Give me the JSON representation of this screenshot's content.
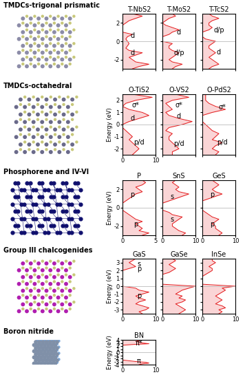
{
  "chart_data": [
    {
      "type": "area",
      "orientation": "horizontal",
      "group": "TMDCs-trigonal prismatic",
      "title": "T-NbS2",
      "color": "#e41a1c",
      "tick_labels": "y",
      "fermi_level": 0,
      "x": [
        -3,
        -2.75,
        -2.5,
        -2.25,
        -2,
        -1.75,
        -1.5,
        -1.25,
        -1,
        -0.75,
        -0.5,
        -0.25,
        0,
        0.25,
        0.5,
        0.75,
        1,
        1.25,
        1.5,
        1.75,
        2,
        2.25,
        2.5,
        2.75,
        3
      ],
      "values": [
        3,
        5,
        8,
        4,
        3,
        2,
        4,
        6,
        2,
        1,
        1.5,
        2,
        1.5,
        1,
        1.5,
        3,
        0,
        0,
        0,
        0,
        1,
        2,
        4,
        6,
        3
      ],
      "xlim": [
        0,
        10
      ],
      "xticks": [
        0,
        10
      ],
      "ylim": [
        -3,
        3
      ],
      "yticks": [
        -2,
        0,
        2
      ],
      "annotations": [
        {
          "text": "d",
          "x": 3,
          "y": 0.6
        },
        {
          "text": "d",
          "x": 3,
          "y": -1.3
        }
      ]
    },
    {
      "type": "area",
      "orientation": "horizontal",
      "group": "TMDCs-trigonal prismatic",
      "title": "T-MoS2",
      "color": "#e41a1c",
      "tick_labels": false,
      "fermi_level": 0,
      "x": [
        -3,
        -2.75,
        -2.5,
        -2.25,
        -2,
        -1.75,
        -1.5,
        -1.25,
        -1,
        -0.75,
        -0.5,
        -0.25,
        0,
        0.25,
        0.5,
        0.75,
        1,
        1.25,
        1.5,
        1.75,
        2,
        2.25,
        2.5,
        2.75,
        3
      ],
      "values": [
        3,
        4,
        6,
        3,
        2,
        3,
        4,
        5,
        3,
        2,
        2,
        3,
        0,
        0,
        0,
        2,
        3,
        5,
        3,
        1,
        0,
        1,
        2,
        4,
        3
      ],
      "xlim": [
        0,
        10
      ],
      "xticks": [
        0,
        10
      ],
      "ylim": [
        -3,
        3
      ],
      "yticks": [
        -2,
        0,
        2
      ],
      "annotations": [
        {
          "text": "d",
          "x": 5,
          "y": 1.0
        },
        {
          "text": "d/p",
          "x": 5,
          "y": -1.3
        }
      ]
    },
    {
      "type": "area",
      "orientation": "horizontal",
      "group": "TMDCs-trigonal prismatic",
      "title": "T-TcS2",
      "color": "#e41a1c",
      "tick_labels": false,
      "fermi_level": 0,
      "x": [
        -3,
        -2.75,
        -2.5,
        -2.25,
        -2,
        -1.75,
        -1.5,
        -1.25,
        -1,
        -0.75,
        -0.5,
        -0.25,
        0,
        0.25,
        0.5,
        0.75,
        1,
        1.25,
        1.5,
        1.75,
        2,
        2.25,
        2.5,
        2.75,
        3
      ],
      "values": [
        2,
        3,
        5,
        4,
        3,
        2,
        3,
        4,
        3,
        2,
        2,
        3,
        4,
        1,
        0,
        0,
        0,
        2,
        3,
        2,
        2,
        3,
        5,
        3,
        2
      ],
      "xlim": [
        0,
        10
      ],
      "xticks": [
        0,
        10
      ],
      "ylim": [
        -3,
        3
      ],
      "yticks": [
        -2,
        0,
        2
      ],
      "annotations": [
        {
          "text": "d/p",
          "x": 5,
          "y": 1.2
        },
        {
          "text": "d",
          "x": 5,
          "y": -1.2
        }
      ]
    },
    {
      "type": "area",
      "orientation": "horizontal",
      "group": "TMDCs-octahedral",
      "title": "O-TiS2",
      "ylabel": "Energy (eV)",
      "color": "#e41a1c",
      "fermi_level": 0,
      "x": [
        -2.5,
        -2.25,
        -2,
        -1.75,
        -1.5,
        -1.25,
        -1,
        -0.75,
        -0.5,
        -0.25,
        0,
        0.25,
        0.5,
        0.75,
        1,
        1.25,
        1.5,
        1.75,
        2,
        2.25,
        2.5
      ],
      "values": [
        3,
        4,
        5,
        4,
        3,
        2,
        3,
        2,
        1,
        0,
        0,
        2,
        5,
        8,
        6,
        2,
        0,
        1,
        4,
        9,
        3
      ],
      "xlim": [
        0,
        10
      ],
      "xticks": [
        0,
        10
      ],
      "ylim": [
        -2.5,
        2.5
      ],
      "yticks": [
        -2,
        -1,
        0,
        1,
        2
      ],
      "annotations": [
        {
          "text": "σ*",
          "x": 4,
          "y": 1.6
        },
        {
          "text": "d",
          "x": 3,
          "y": 0.5
        },
        {
          "text": "p/d",
          "x": 5,
          "y": -1.5
        }
      ]
    },
    {
      "type": "area",
      "orientation": "horizontal",
      "group": "TMDCs-octahedral",
      "title": "O-VS2",
      "color": "#e41a1c",
      "tick_labels": false,
      "fermi_level": 0,
      "x": [
        -2.5,
        -2.25,
        -2,
        -1.75,
        -1.5,
        -1.25,
        -1,
        -0.75,
        -0.5,
        -0.25,
        0,
        0.25,
        0.5,
        0.75,
        1,
        1.25,
        1.5,
        1.75,
        2,
        2.25,
        2.5
      ],
      "values": [
        3,
        3,
        5,
        4,
        3,
        2,
        2,
        3,
        1,
        2,
        6,
        9,
        5,
        2,
        1,
        3,
        2,
        1,
        3,
        8,
        4
      ],
      "xlim": [
        0,
        10
      ],
      "xticks": [
        0,
        10
      ],
      "ylim": [
        -2.5,
        2.5
      ],
      "yticks": [
        -2,
        -1,
        0,
        1,
        2
      ],
      "annotations": [
        {
          "text": "σ*",
          "x": 5,
          "y": 1.6
        },
        {
          "text": "d",
          "x": 5,
          "y": 0.7
        },
        {
          "text": "p/d",
          "x": 5,
          "y": -1.6
        }
      ]
    },
    {
      "type": "area",
      "orientation": "horizontal",
      "group": "TMDCs-octahedral",
      "title": "O-PdS2",
      "color": "#e41a1c",
      "tick_labels": false,
      "fermi_level": 0,
      "x": [
        -2.5,
        -2.25,
        -2,
        -1.75,
        -1.5,
        -1.25,
        -1,
        -0.75,
        -0.5,
        -0.25,
        0,
        0.25,
        0.5,
        0.75,
        1,
        1.25,
        1.5,
        1.75,
        2,
        2.25,
        2.5
      ],
      "values": [
        4,
        5,
        3,
        4,
        6,
        3,
        4,
        5,
        3,
        2,
        1,
        0,
        0,
        0,
        3,
        7,
        4,
        2,
        1,
        1,
        1
      ],
      "xlim": [
        0,
        10
      ],
      "xticks": [
        0,
        10
      ],
      "ylim": [
        -2.5,
        2.5
      ],
      "yticks": [
        -2,
        -1,
        0,
        1,
        2
      ],
      "annotations": [
        {
          "text": "σ*",
          "x": 6,
          "y": 1.4
        },
        {
          "text": "p/d",
          "x": 6,
          "y": -1.5
        }
      ]
    },
    {
      "type": "area",
      "orientation": "horizontal",
      "group": "Phosphorene and IV-VI",
      "title": "P",
      "ylabel": "Energy (eV)",
      "color": "#e41a1c",
      "fermi_level": 0,
      "x": [
        -3,
        -2.75,
        -2.5,
        -2.25,
        -2,
        -1.75,
        -1.5,
        -1.25,
        -1,
        -0.75,
        -0.5,
        -0.25,
        0,
        0.25,
        0.5,
        0.75,
        1,
        1.25,
        1.5,
        1.75,
        2,
        2.25,
        2.5,
        2.75,
        3
      ],
      "values": [
        3,
        4,
        2.5,
        3,
        2.5,
        2,
        3,
        2,
        1.5,
        1,
        0.5,
        0,
        0,
        0,
        0,
        0.5,
        1,
        1.5,
        2,
        3,
        2.5,
        2,
        3,
        3.5,
        3
      ],
      "xlim": [
        0,
        5
      ],
      "xticks": [
        0,
        5
      ],
      "ylim": [
        -3,
        3
      ],
      "yticks": [
        -2,
        0,
        2
      ],
      "annotations": [
        {
          "text": "p",
          "x": 1.5,
          "y": 1.4
        },
        {
          "text": "p",
          "x": 2.0,
          "y": -1.8
        }
      ]
    },
    {
      "type": "area",
      "orientation": "horizontal",
      "group": "Phosphorene and IV-VI",
      "title": "SnS",
      "color": "#e41a1c",
      "tick_labels": "x",
      "fermi_level": 0,
      "x": [
        -3,
        -2.75,
        -2.5,
        -2.25,
        -2,
        -1.75,
        -1.5,
        -1.25,
        -1,
        -0.75,
        -0.5,
        -0.25,
        0,
        0.25,
        0.5,
        0.75,
        1,
        1.25,
        1.5,
        1.75,
        2,
        2.25,
        2.5,
        2.75,
        3
      ],
      "values": [
        6,
        7,
        5,
        4,
        3,
        3,
        4,
        5,
        6,
        3,
        2,
        0,
        0,
        0,
        0,
        2,
        4,
        6,
        8,
        5,
        4,
        5,
        4,
        3,
        4
      ],
      "xlim": [
        0,
        10
      ],
      "xticks": [
        0,
        10
      ],
      "ylim": [
        -3,
        3
      ],
      "yticks": [
        -2,
        0,
        2
      ],
      "annotations": [
        {
          "text": "s",
          "x": 3,
          "y": 1.2
        },
        {
          "text": "s",
          "x": 3,
          "y": -1.3
        }
      ]
    },
    {
      "type": "area",
      "orientation": "horizontal",
      "group": "Phosphorene and IV-VI",
      "title": "GeS",
      "color": "#e41a1c",
      "tick_labels": "x",
      "fermi_level": 0,
      "x": [
        -3,
        -2.75,
        -2.5,
        -2.25,
        -2,
        -1.75,
        -1.5,
        -1.25,
        -1,
        -0.75,
        -0.5,
        -0.25,
        0,
        0.25,
        0.5,
        0.75,
        1,
        1.25,
        1.5,
        1.75,
        2,
        2.25,
        2.5,
        2.75,
        3
      ],
      "values": [
        5,
        6,
        5,
        4,
        4,
        3,
        4,
        5,
        3,
        2,
        1,
        0,
        0,
        0,
        0,
        0,
        2,
        4,
        6,
        4,
        3,
        4,
        5,
        4,
        3
      ],
      "xlim": [
        0,
        10
      ],
      "xticks": [
        0,
        10
      ],
      "ylim": [
        -3,
        3
      ],
      "yticks": [
        -2,
        0,
        2
      ],
      "annotations": [
        {
          "text": "p",
          "x": 3,
          "y": 1.4
        },
        {
          "text": "p",
          "x": 3,
          "y": -1.8
        }
      ]
    },
    {
      "type": "area",
      "orientation": "horizontal",
      "group": "Group III chalcogenides",
      "title": "GaS",
      "ylabel": "Energy (eV)",
      "color": "#e41a1c",
      "fermi_level": 0,
      "x": [
        -3.5,
        -3.25,
        -3,
        -2.75,
        -2.5,
        -2.25,
        -2,
        -1.75,
        -1.5,
        -1.25,
        -1,
        -0.75,
        -0.5,
        -0.25,
        0,
        0.25,
        0.5,
        0.75,
        1,
        1.25,
        1.5,
        1.75,
        2,
        2.25,
        2.5,
        2.75,
        3,
        3.25,
        3.5
      ],
      "values": [
        6,
        5,
        7,
        8,
        6,
        4,
        5,
        7,
        5,
        4,
        6,
        8,
        5,
        4,
        0,
        0,
        0,
        0,
        0,
        0,
        0,
        0,
        0,
        2,
        4,
        3,
        2,
        3,
        4
      ],
      "xlim": [
        0,
        10
      ],
      "xticks": [
        0,
        10
      ],
      "ylim": [
        -3.5,
        3.5
      ],
      "yticks": [
        -3,
        -2,
        -1,
        0,
        1,
        2,
        3
      ],
      "annotations": [
        {
          "text": "s",
          "x": 5,
          "y": 2.8
        },
        {
          "text": "p",
          "x": 5,
          "y": 2.2
        },
        {
          "text": "p",
          "x": 5,
          "y": -1.2
        }
      ]
    },
    {
      "type": "area",
      "orientation": "horizontal",
      "group": "Group III chalcogenides",
      "title": "GaSe",
      "color": "#e41a1c",
      "tick_labels": "x",
      "fermi_level": 0,
      "x": [
        -3.5,
        -3.25,
        -3,
        -2.75,
        -2.5,
        -2.25,
        -2,
        -1.75,
        -1.5,
        -1.25,
        -1,
        -0.75,
        -0.5,
        -0.25,
        0,
        0.25,
        0.5,
        0.75,
        1,
        1.25,
        1.5,
        1.75,
        2,
        2.25,
        2.5,
        2.75,
        3,
        3.25,
        3.5
      ],
      "values": [
        5,
        6,
        7,
        6,
        5,
        4,
        6,
        7,
        5,
        6,
        4,
        5,
        6,
        8,
        10,
        0,
        0,
        0,
        0,
        0,
        0,
        2,
        3,
        4,
        3,
        2,
        3,
        4,
        3
      ],
      "xlim": [
        0,
        10
      ],
      "xticks": [
        0,
        10
      ],
      "ylim": [
        -3.5,
        3.5
      ],
      "yticks": [
        -3,
        -2,
        -1,
        0,
        1,
        2,
        3
      ]
    },
    {
      "type": "area",
      "orientation": "horizontal",
      "group": "Group III chalcogenides",
      "title": "InSe",
      "color": "#e41a1c",
      "tick_labels": "x",
      "fermi_level": 0,
      "x": [
        -3.5,
        -3.25,
        -3,
        -2.75,
        -2.5,
        -2.25,
        -2,
        -1.75,
        -1.5,
        -1.25,
        -1,
        -0.75,
        -0.5,
        -0.25,
        0,
        0.25,
        0.5,
        0.75,
        1,
        1.25,
        1.5,
        1.75,
        2,
        2.25,
        2.5,
        2.75,
        3,
        3.25,
        3.5
      ],
      "values": [
        5,
        6,
        5,
        7,
        6,
        4,
        5,
        6,
        5,
        4,
        5,
        6,
        7,
        6,
        10,
        0,
        0,
        0,
        0,
        0,
        1,
        2,
        3,
        3,
        2,
        3,
        4,
        3,
        3
      ],
      "xlim": [
        0,
        10
      ],
      "xticks": [
        0,
        10
      ],
      "ylim": [
        -3.5,
        3.5
      ],
      "yticks": [
        -3,
        -2,
        -1,
        0,
        1,
        2,
        3
      ]
    },
    {
      "type": "area",
      "orientation": "horizontal",
      "group": "Boron nitride",
      "title": "BN",
      "ylabel": "Energy (eV)",
      "color": "#e41a1c",
      "fermi_level": 0,
      "x": [
        -4,
        -3.75,
        -3.5,
        -3.25,
        -3,
        -2.75,
        -2.5,
        -2.25,
        -2,
        -1.75,
        -1.5,
        -1.25,
        -1,
        -0.75,
        -0.5,
        -0.25,
        0,
        0.25,
        0.5,
        0.75,
        1,
        1.25,
        1.5,
        1.75,
        2,
        2.25,
        2.5,
        2.75,
        3,
        3.25,
        3.5,
        3.75,
        4
      ],
      "values": [
        5,
        6,
        8,
        7,
        4,
        2,
        0,
        0,
        0,
        0,
        0,
        0,
        0,
        0,
        0,
        0,
        0,
        0,
        0,
        0,
        0,
        0,
        0,
        0,
        0,
        0,
        3,
        8,
        6,
        5,
        4,
        5,
        6
      ],
      "xlim": [
        0,
        10
      ],
      "xticks": [
        0,
        10
      ],
      "ylim": [
        -4,
        4
      ],
      "yticks": [
        -4,
        -3,
        -2,
        -1,
        0,
        1,
        2,
        3,
        4
      ],
      "annotations": [
        {
          "text": "π*",
          "x": 5,
          "y": 3.0
        },
        {
          "text": "π",
          "x": 5,
          "y": -3.0
        }
      ]
    }
  ]
}
